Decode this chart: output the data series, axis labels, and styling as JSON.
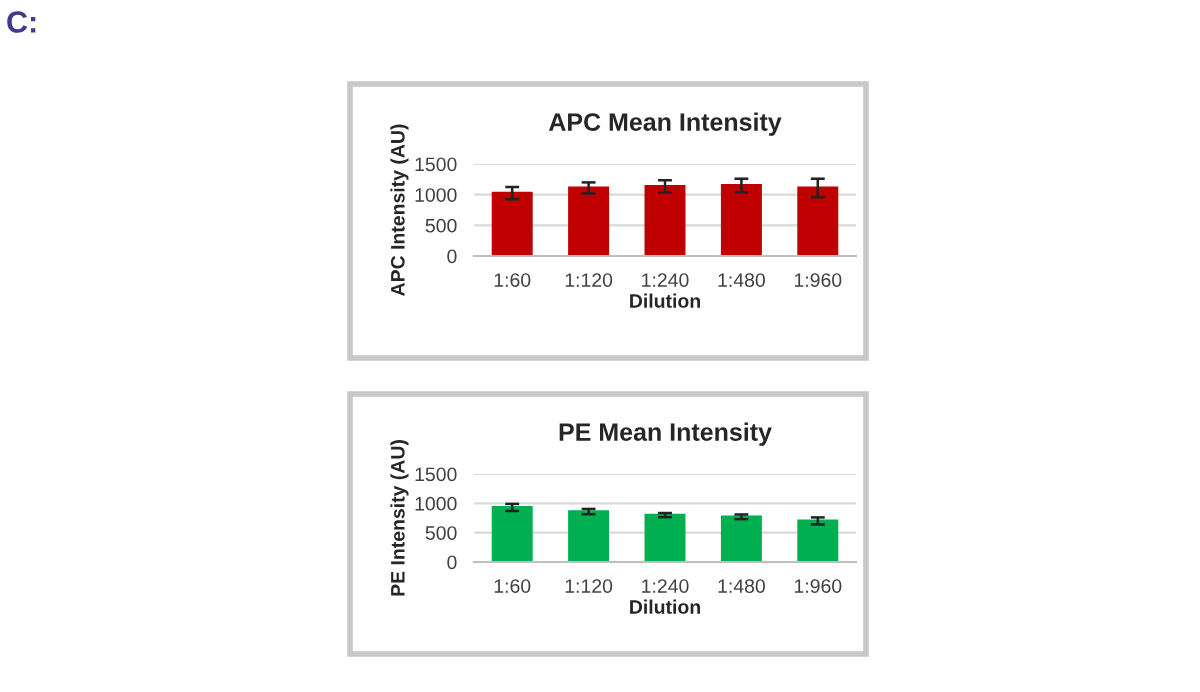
{
  "chart_data": [
    {
      "type": "bar",
      "title": "APC Mean Intensity",
      "xlabel": "Dilution",
      "ylabel": "APC Intensity (AU)",
      "annotations": [
        "C:"
      ],
      "categories": [
        "1:60",
        "1:120",
        "1:240",
        "1:480",
        "1:960"
      ],
      "series": [
        {
          "color": "#c00000",
          "values": [
            1025,
            1110,
            1135,
            1150,
            1110
          ],
          "errors": [
            100,
            90,
            100,
            110,
            150
          ]
        }
      ],
      "ylim": [
        0,
        1500
      ],
      "yticks": [
        0,
        500,
        1000,
        1500
      ],
      "grid": "y"
    },
    {
      "type": "bar",
      "title": "PE Mean Intensity",
      "xlabel": "Dilution",
      "ylabel": "PE Intensity (AU)",
      "categories": [
        "1:60",
        "1:120",
        "1:240",
        "1:480",
        "1:960"
      ],
      "series": [
        {
          "color": "#00b050",
          "values": [
            930,
            860,
            800,
            770,
            700
          ],
          "errors": [
            60,
            45,
            35,
            40,
            60
          ]
        }
      ],
      "ylim": [
        0,
        1500
      ],
      "yticks": [
        0,
        500,
        1000,
        1500
      ],
      "grid": "y"
    }
  ]
}
